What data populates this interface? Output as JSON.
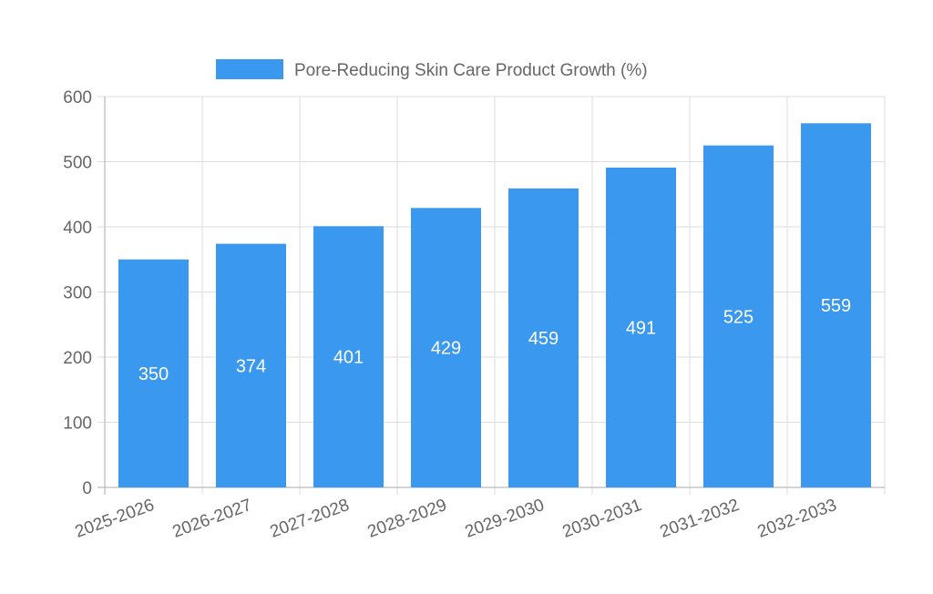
{
  "chart_data": {
    "type": "bar",
    "categories": [
      "2025-2026",
      "2026-2027",
      "2027-2028",
      "2028-2029",
      "2029-2030",
      "2030-2031",
      "2031-2032",
      "2032-2033"
    ],
    "series": [
      {
        "name": "Pore-Reducing Skin Care Product Growth (%)",
        "values": [
          350,
          374,
          401,
          429,
          459,
          491,
          525,
          559
        ],
        "color": "#3a99ee"
      }
    ],
    "ylim": [
      0,
      600
    ],
    "yticks": [
      0,
      100,
      200,
      300,
      400,
      500,
      600
    ],
    "grid": true,
    "legend_position": "top-center",
    "data_labels": true
  }
}
